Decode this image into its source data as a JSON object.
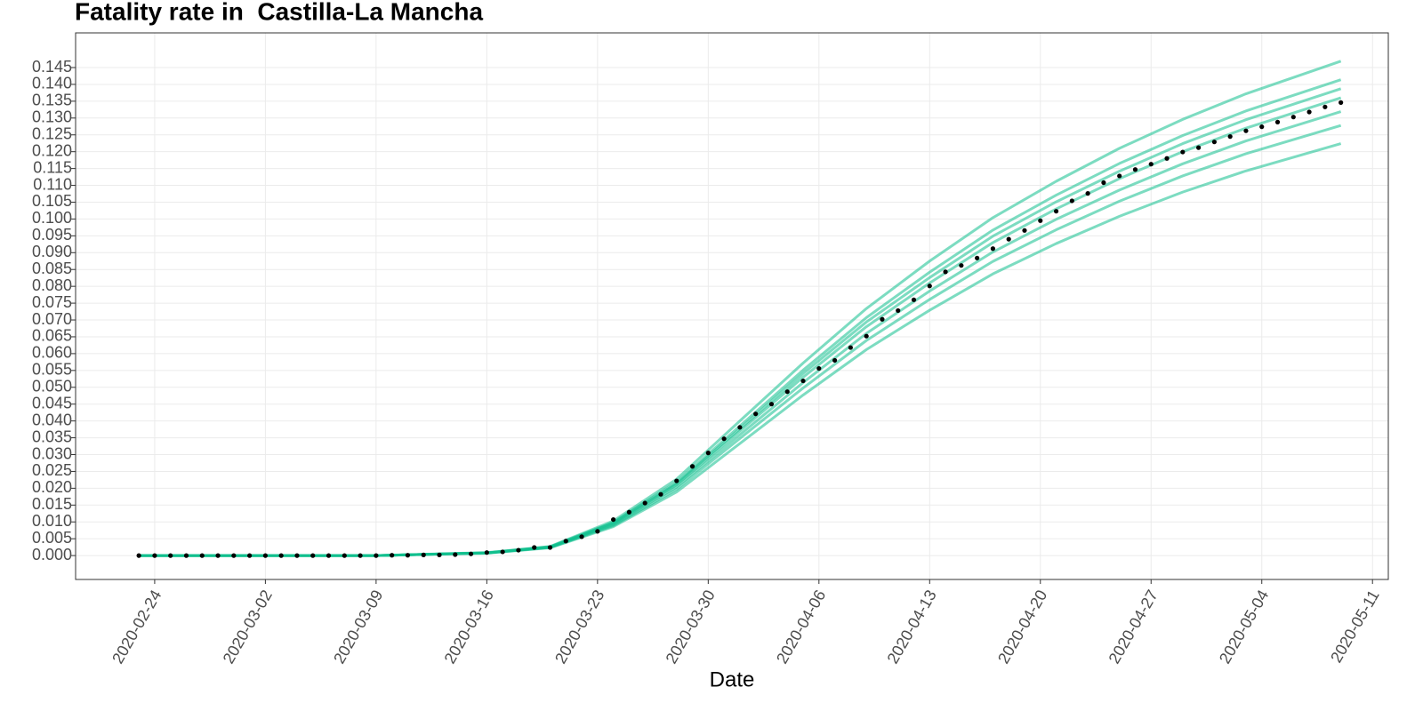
{
  "chart_data": {
    "type": "line",
    "title": "Fatality rate in  Castilla-La Mancha",
    "x_label": "Date",
    "xlim": [
      "2020-02-19",
      "2020-05-12"
    ],
    "xticks": [
      "2020-02-24",
      "2020-03-02",
      "2020-03-09",
      "2020-03-16",
      "2020-03-23",
      "2020-03-30",
      "2020-04-06",
      "2020-04-13",
      "2020-04-20",
      "2020-04-27",
      "2020-05-04",
      "2020-05-11"
    ],
    "ylim": [
      -0.0071,
      0.1553
    ],
    "yticks": [
      {
        "value": 0,
        "label": "0.000"
      },
      {
        "value": 0.005,
        "label": "0.005"
      },
      {
        "value": 0.01,
        "label": "0.010"
      },
      {
        "value": 0.015,
        "label": "0.015"
      },
      {
        "value": 0.02,
        "label": "0.020"
      },
      {
        "value": 0.025,
        "label": "0.025"
      },
      {
        "value": 0.03,
        "label": "0.030"
      },
      {
        "value": 0.035,
        "label": "0.035"
      },
      {
        "value": 0.04,
        "label": "0.040"
      },
      {
        "value": 0.045,
        "label": "0.045"
      },
      {
        "value": 0.05,
        "label": "0.050"
      },
      {
        "value": 0.055,
        "label": "0.055"
      },
      {
        "value": 0.06,
        "label": "0.060"
      },
      {
        "value": 0.065,
        "label": "0.065"
      },
      {
        "value": 0.07,
        "label": "0.070"
      },
      {
        "value": 0.075,
        "label": "0.075"
      },
      {
        "value": 0.08,
        "label": "0.080"
      },
      {
        "value": 0.085,
        "label": "0.085"
      },
      {
        "value": 0.09,
        "label": "0.090"
      },
      {
        "value": 0.095,
        "label": "0.095"
      },
      {
        "value": 0.1,
        "label": "0.100"
      },
      {
        "value": 0.105,
        "label": "0.105"
      },
      {
        "value": 0.11,
        "label": "0.110"
      },
      {
        "value": 0.115,
        "label": "0.115"
      },
      {
        "value": 0.12,
        "label": "0.120"
      },
      {
        "value": 0.125,
        "label": "0.125"
      },
      {
        "value": 0.13,
        "label": "0.130"
      },
      {
        "value": 0.135,
        "label": "0.135"
      },
      {
        "value": 0.14,
        "label": "0.140"
      },
      {
        "value": 0.145,
        "label": "0.145"
      }
    ],
    "grid": true,
    "simulations": {
      "color": "#10c08e",
      "x": [
        "2020-02-23",
        "2020-03-09",
        "2020-03-16",
        "2020-03-20",
        "2020-03-24",
        "2020-03-28",
        "2020-04-01",
        "2020-04-05",
        "2020-04-09",
        "2020-04-13",
        "2020-04-17",
        "2020-04-21",
        "2020-04-25",
        "2020-04-29",
        "2020-05-03",
        "2020-05-09"
      ],
      "series": [
        {
          "values": [
            0,
            0,
            0.0007,
            0.0023,
            0.0086,
            0.0189,
            0.0333,
            0.0477,
            0.0612,
            0.0729,
            0.0837,
            0.0927,
            0.1008,
            0.108,
            0.1143,
            0.1224
          ]
        },
        {
          "values": [
            0,
            0,
            0.0008,
            0.0024,
            0.0089,
            0.0197,
            0.0348,
            0.0498,
            0.0639,
            0.0761,
            0.0874,
            0.0968,
            0.1053,
            0.1128,
            0.1194,
            0.1278
          ]
        },
        {
          "values": [
            0,
            0,
            0.0008,
            0.0024,
            0.0092,
            0.0204,
            0.0359,
            0.0514,
            0.066,
            0.0786,
            0.0902,
            0.0999,
            0.1086,
            0.1164,
            0.1232,
            0.1319
          ]
        },
        {
          "values": [
            0,
            0,
            0.0008,
            0.0025,
            0.0095,
            0.021,
            0.037,
            0.053,
            0.068,
            0.081,
            0.093,
            0.103,
            0.112,
            0.12,
            0.127,
            0.136
          ]
        },
        {
          "values": [
            0,
            0,
            0.0008,
            0.0026,
            0.0097,
            0.0214,
            0.0377,
            0.0541,
            0.0694,
            0.0826,
            0.0949,
            0.1051,
            0.1142,
            0.1224,
            0.1295,
            0.1387
          ]
        },
        {
          "values": [
            0,
            0,
            0.0008,
            0.0026,
            0.0099,
            0.0218,
            0.0385,
            0.0551,
            0.0707,
            0.0842,
            0.0967,
            0.1071,
            0.1165,
            0.1248,
            0.1321,
            0.1414
          ]
        },
        {
          "values": [
            0,
            0,
            0.0009,
            0.0027,
            0.0103,
            0.0227,
            0.04,
            0.0572,
            0.0734,
            0.0875,
            0.1004,
            0.1112,
            0.121,
            0.1296,
            0.1372,
            0.1469
          ]
        }
      ]
    },
    "observed": {
      "color": "#000000",
      "start": "2020-02-23",
      "values": [
        0,
        0,
        0,
        0,
        0,
        0,
        0,
        0,
        0,
        0,
        0,
        0,
        0,
        0,
        0,
        0,
        0.0001,
        0.0001,
        0.0002,
        0.0002,
        0.0003,
        0.0005,
        0.0009,
        0.0011,
        0.0016,
        0.0024,
        0.0024,
        0.0043,
        0.0056,
        0.0072,
        0.0107,
        0.0129,
        0.0156,
        0.0182,
        0.0222,
        0.0265,
        0.0305,
        0.0347,
        0.0381,
        0.0421,
        0.045,
        0.0487,
        0.0519,
        0.0556,
        0.058,
        0.0618,
        0.0652,
        0.0702,
        0.0728,
        0.076,
        0.0801,
        0.0843,
        0.0862,
        0.0884,
        0.0912,
        0.094,
        0.0966,
        0.0995,
        0.1023,
        0.1054,
        0.1076,
        0.1108,
        0.1128,
        0.1147,
        0.1163,
        0.118,
        0.1199,
        0.1212,
        0.1229,
        0.1245,
        0.1262,
        0.1274,
        0.1288,
        0.1303,
        0.1318,
        0.1333,
        0.1346
      ]
    }
  }
}
